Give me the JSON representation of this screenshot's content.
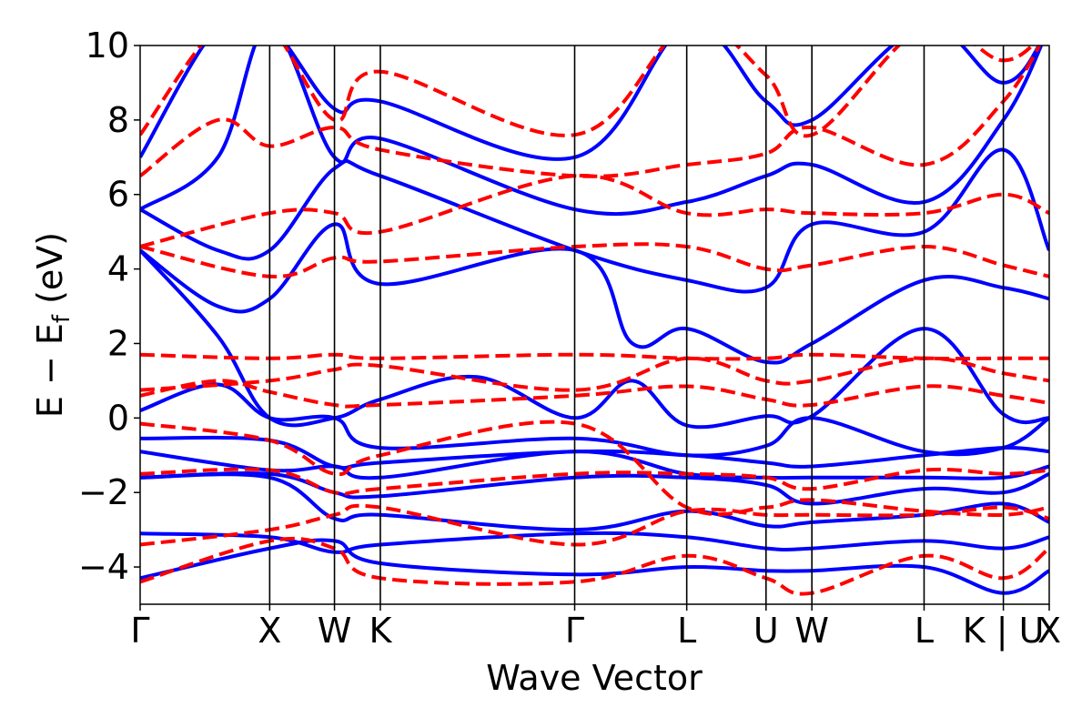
{
  "chart_data": {
    "type": "line",
    "title": "",
    "xlabel": "Wave Vector",
    "ylabel_main": "E − E",
    "ylabel_sub": "f",
    "ylabel_unit": " (eV)",
    "ylim": [
      -5,
      10
    ],
    "yticks": [
      -4,
      -2,
      0,
      2,
      4,
      6,
      8,
      10
    ],
    "ytick_labels": [
      "−4",
      "−2",
      "0",
      "2",
      "4",
      "6",
      "8",
      "10"
    ],
    "kpath_labels": [
      "Γ",
      "X",
      "W",
      "K",
      "Γ",
      "L",
      "U",
      "W",
      "L",
      "K | U",
      "X"
    ],
    "kpath_positions": [
      0.0,
      1.0,
      1.5,
      1.854,
      3.354,
      4.219,
      4.831,
      5.185,
      6.051,
      6.663,
      7.017
    ],
    "series": [
      {
        "style": "solid",
        "color": "#0000ff",
        "bands": [
          [
            [
              0,
              -4.3
            ],
            [
              1.0,
              -3.5
            ],
            [
              1.5,
              -3.3
            ],
            [
              1.854,
              -3.9
            ],
            [
              3.354,
              -4.2
            ],
            [
              4.219,
              -4.0
            ],
            [
              4.831,
              -4.1
            ],
            [
              5.185,
              -4.1
            ],
            [
              6.051,
              -4.0
            ],
            [
              6.663,
              -4.7
            ],
            [
              7.017,
              -4.1
            ]
          ],
          [
            [
              0,
              -3.1
            ],
            [
              1.0,
              -3.2
            ],
            [
              1.5,
              -3.6
            ],
            [
              1.854,
              -3.4
            ],
            [
              3.354,
              -3.1
            ],
            [
              4.219,
              -3.2
            ],
            [
              4.831,
              -3.5
            ],
            [
              5.185,
              -3.5
            ],
            [
              6.051,
              -3.3
            ],
            [
              6.663,
              -3.5
            ],
            [
              7.017,
              -3.2
            ]
          ],
          [
            [
              0,
              -1.6
            ],
            [
              1.0,
              -1.6
            ],
            [
              1.5,
              -2.7
            ],
            [
              1.854,
              -2.6
            ],
            [
              3.354,
              -3.0
            ],
            [
              4.219,
              -2.5
            ],
            [
              4.831,
              -2.9
            ],
            [
              5.185,
              -2.8
            ],
            [
              6.051,
              -2.6
            ],
            [
              6.663,
              -2.3
            ],
            [
              7.017,
              -2.8
            ]
          ],
          [
            [
              0,
              -1.6
            ],
            [
              1.0,
              -1.5
            ],
            [
              1.5,
              -2.0
            ],
            [
              1.854,
              -2.1
            ],
            [
              3.354,
              -1.6
            ],
            [
              4.219,
              -1.6
            ],
            [
              4.831,
              -1.8
            ],
            [
              5.185,
              -2.3
            ],
            [
              6.051,
              -1.9
            ],
            [
              6.663,
              -2.0
            ],
            [
              7.017,
              -1.5
            ]
          ],
          [
            [
              0,
              -0.9
            ],
            [
              1.0,
              -1.4
            ],
            [
              1.5,
              -1.3
            ],
            [
              1.854,
              -1.6
            ],
            [
              3.354,
              -0.9
            ],
            [
              4.219,
              -1.5
            ],
            [
              4.831,
              -1.6
            ],
            [
              5.185,
              -1.6
            ],
            [
              6.051,
              -1.6
            ],
            [
              6.663,
              -1.6
            ],
            [
              7.017,
              -1.3
            ]
          ],
          [
            [
              0,
              -0.55
            ],
            [
              1.0,
              -0.6
            ],
            [
              1.5,
              -1.3
            ],
            [
              1.854,
              -1.2
            ],
            [
              3.354,
              -0.9
            ],
            [
              4.219,
              -1.0
            ],
            [
              4.831,
              -1.2
            ],
            [
              5.185,
              -1.3
            ],
            [
              6.051,
              -1.0
            ],
            [
              6.663,
              -0.8
            ],
            [
              7.017,
              -0.9
            ]
          ],
          [
            [
              0,
              0.2
            ],
            [
              0.6,
              0.9
            ],
            [
              1.0,
              0.0
            ],
            [
              1.5,
              0.0
            ],
            [
              1.854,
              -0.8
            ],
            [
              3.354,
              -0.55
            ],
            [
              4.219,
              -1.0
            ],
            [
              4.831,
              -0.75
            ],
            [
              5.185,
              0.0
            ],
            [
              6.051,
              -0.9
            ],
            [
              6.663,
              -0.8
            ],
            [
              7.017,
              0.0
            ]
          ],
          [
            [
              0,
              4.5
            ],
            [
              0.6,
              2.2
            ],
            [
              1.0,
              0.0
            ],
            [
              1.5,
              0.0
            ],
            [
              1.854,
              0.5
            ],
            [
              2.6,
              1.1
            ],
            [
              3.354,
              0.0
            ],
            [
              3.8,
              1.0
            ],
            [
              4.219,
              -0.2
            ],
            [
              4.831,
              0.05
            ],
            [
              5.185,
              0.05
            ],
            [
              6.051,
              2.4
            ],
            [
              6.663,
              0.1
            ],
            [
              7.017,
              0.0
            ]
          ],
          [
            [
              0,
              4.5
            ],
            [
              0.6,
              3.0
            ],
            [
              1.0,
              3.2
            ],
            [
              1.5,
              5.2
            ],
            [
              1.854,
              3.6
            ],
            [
              3.354,
              4.5
            ],
            [
              3.8,
              2.0
            ],
            [
              4.219,
              2.4
            ],
            [
              4.831,
              1.5
            ],
            [
              5.185,
              2.0
            ],
            [
              6.051,
              3.7
            ],
            [
              6.663,
              3.5
            ],
            [
              7.017,
              3.2
            ]
          ],
          [
            [
              0,
              5.6
            ],
            [
              0.6,
              4.5
            ],
            [
              1.0,
              4.5
            ],
            [
              1.5,
              6.7
            ],
            [
              1.854,
              6.5
            ],
            [
              3.354,
              4.5
            ],
            [
              4.219,
              3.7
            ],
            [
              4.831,
              3.5
            ],
            [
              5.185,
              5.2
            ],
            [
              6.051,
              5.0
            ],
            [
              6.663,
              7.2
            ],
            [
              7.017,
              4.5
            ]
          ],
          [
            [
              0,
              5.6
            ],
            [
              0.6,
              7.0
            ],
            [
              1.0,
              10.5
            ],
            [
              1.5,
              7.0
            ],
            [
              1.854,
              7.5
            ],
            [
              3.354,
              5.6
            ],
            [
              4.219,
              5.8
            ],
            [
              4.831,
              6.5
            ],
            [
              5.185,
              6.8
            ],
            [
              6.051,
              5.8
            ],
            [
              6.663,
              8.0
            ],
            [
              7.017,
              10.5
            ]
          ],
          [
            [
              0,
              7.0
            ],
            [
              0.6,
              10.5
            ],
            [
              1.0,
              10.5
            ],
            [
              1.5,
              8.3
            ],
            [
              1.854,
              8.5
            ],
            [
              3.354,
              7.0
            ],
            [
              4.219,
              10.5
            ],
            [
              4.831,
              8.5
            ],
            [
              5.185,
              8.0
            ],
            [
              6.051,
              10.5
            ],
            [
              6.663,
              9.0
            ],
            [
              7.017,
              10.5
            ]
          ]
        ]
      },
      {
        "style": "dashed",
        "color": "#ff0000",
        "bands": [
          [
            [
              0,
              -4.4
            ],
            [
              1.0,
              -3.3
            ],
            [
              1.5,
              -3.5
            ],
            [
              1.854,
              -4.3
            ],
            [
              3.354,
              -4.4
            ],
            [
              4.219,
              -3.7
            ],
            [
              4.831,
              -4.3
            ],
            [
              5.185,
              -4.7
            ],
            [
              6.051,
              -3.7
            ],
            [
              6.663,
              -4.3
            ],
            [
              7.017,
              -3.5
            ]
          ],
          [
            [
              0,
              -3.4
            ],
            [
              1.0,
              -3.0
            ],
            [
              1.5,
              -2.6
            ],
            [
              1.854,
              -2.4
            ],
            [
              3.354,
              -3.4
            ],
            [
              4.219,
              -2.5
            ],
            [
              4.831,
              -2.6
            ],
            [
              5.185,
              -2.6
            ],
            [
              6.051,
              -2.6
            ],
            [
              6.663,
              -2.4
            ],
            [
              7.017,
              -2.7
            ]
          ],
          [
            [
              0,
              -1.5
            ],
            [
              1.0,
              -1.4
            ],
            [
              1.5,
              -2.0
            ],
            [
              1.854,
              -1.9
            ],
            [
              3.354,
              -1.5
            ],
            [
              4.219,
              -1.5
            ],
            [
              4.831,
              -1.6
            ],
            [
              5.185,
              -1.9
            ],
            [
              6.051,
              -1.4
            ],
            [
              6.663,
              -1.5
            ],
            [
              7.017,
              -1.4
            ]
          ],
          [
            [
              0,
              -0.15
            ],
            [
              1.0,
              -0.6
            ],
            [
              1.5,
              -1.5
            ],
            [
              1.854,
              -1.0
            ],
            [
              3.354,
              -0.15
            ],
            [
              4.219,
              -2.4
            ],
            [
              4.831,
              -2.4
            ],
            [
              5.185,
              -2.2
            ],
            [
              6.051,
              -2.5
            ],
            [
              6.663,
              -2.6
            ],
            [
              7.017,
              -2.4
            ]
          ],
          [
            [
              0,
              0.6
            ],
            [
              0.6,
              1.0
            ],
            [
              1.0,
              0.7
            ],
            [
              1.5,
              0.35
            ],
            [
              1.854,
              0.35
            ],
            [
              3.354,
              0.6
            ],
            [
              4.219,
              0.85
            ],
            [
              4.831,
              0.5
            ],
            [
              5.185,
              0.35
            ],
            [
              6.051,
              0.85
            ],
            [
              6.663,
              0.6
            ],
            [
              7.017,
              0.4
            ]
          ],
          [
            [
              0,
              0.75
            ],
            [
              1.0,
              1.0
            ],
            [
              1.5,
              1.3
            ],
            [
              1.854,
              1.4
            ],
            [
              3.354,
              0.75
            ],
            [
              4.219,
              1.6
            ],
            [
              4.831,
              1.0
            ],
            [
              5.185,
              1.0
            ],
            [
              6.051,
              1.6
            ],
            [
              6.663,
              1.2
            ],
            [
              7.017,
              1.0
            ]
          ],
          [
            [
              0,
              1.7
            ],
            [
              1.0,
              1.6
            ],
            [
              1.5,
              1.7
            ],
            [
              1.854,
              1.6
            ],
            [
              3.354,
              1.7
            ],
            [
              4.219,
              1.6
            ],
            [
              4.831,
              1.6
            ],
            [
              5.185,
              1.7
            ],
            [
              6.051,
              1.6
            ],
            [
              6.663,
              1.6
            ],
            [
              7.017,
              1.6
            ]
          ],
          [
            [
              0,
              4.6
            ],
            [
              1.0,
              3.8
            ],
            [
              1.5,
              4.3
            ],
            [
              1.854,
              4.2
            ],
            [
              3.354,
              4.6
            ],
            [
              4.219,
              4.6
            ],
            [
              4.831,
              4.0
            ],
            [
              5.185,
              4.1
            ],
            [
              6.051,
              4.6
            ],
            [
              6.663,
              4.1
            ],
            [
              7.017,
              3.8
            ]
          ],
          [
            [
              0,
              4.6
            ],
            [
              1.0,
              5.5
            ],
            [
              1.5,
              5.5
            ],
            [
              1.854,
              5.0
            ],
            [
              3.354,
              6.5
            ],
            [
              4.219,
              5.5
            ],
            [
              4.831,
              5.6
            ],
            [
              5.185,
              5.5
            ],
            [
              6.051,
              5.5
            ],
            [
              6.663,
              6.0
            ],
            [
              7.017,
              5.5
            ]
          ],
          [
            [
              0,
              6.5
            ],
            [
              0.6,
              8.0
            ],
            [
              1.0,
              7.3
            ],
            [
              1.5,
              7.8
            ],
            [
              1.854,
              7.2
            ],
            [
              3.354,
              6.5
            ],
            [
              4.219,
              6.8
            ],
            [
              4.831,
              7.1
            ],
            [
              5.185,
              7.8
            ],
            [
              6.051,
              6.8
            ],
            [
              6.663,
              8.5
            ],
            [
              7.017,
              10.5
            ]
          ],
          [
            [
              0,
              7.6
            ],
            [
              0.6,
              10.5
            ],
            [
              1.0,
              10.5
            ],
            [
              1.5,
              8.0
            ],
            [
              1.854,
              9.3
            ],
            [
              3.354,
              7.6
            ],
            [
              4.219,
              10.5
            ],
            [
              4.831,
              9.2
            ],
            [
              5.185,
              7.6
            ],
            [
              6.051,
              10.5
            ],
            [
              6.663,
              9.6
            ],
            [
              7.017,
              10.5
            ]
          ]
        ]
      }
    ]
  }
}
